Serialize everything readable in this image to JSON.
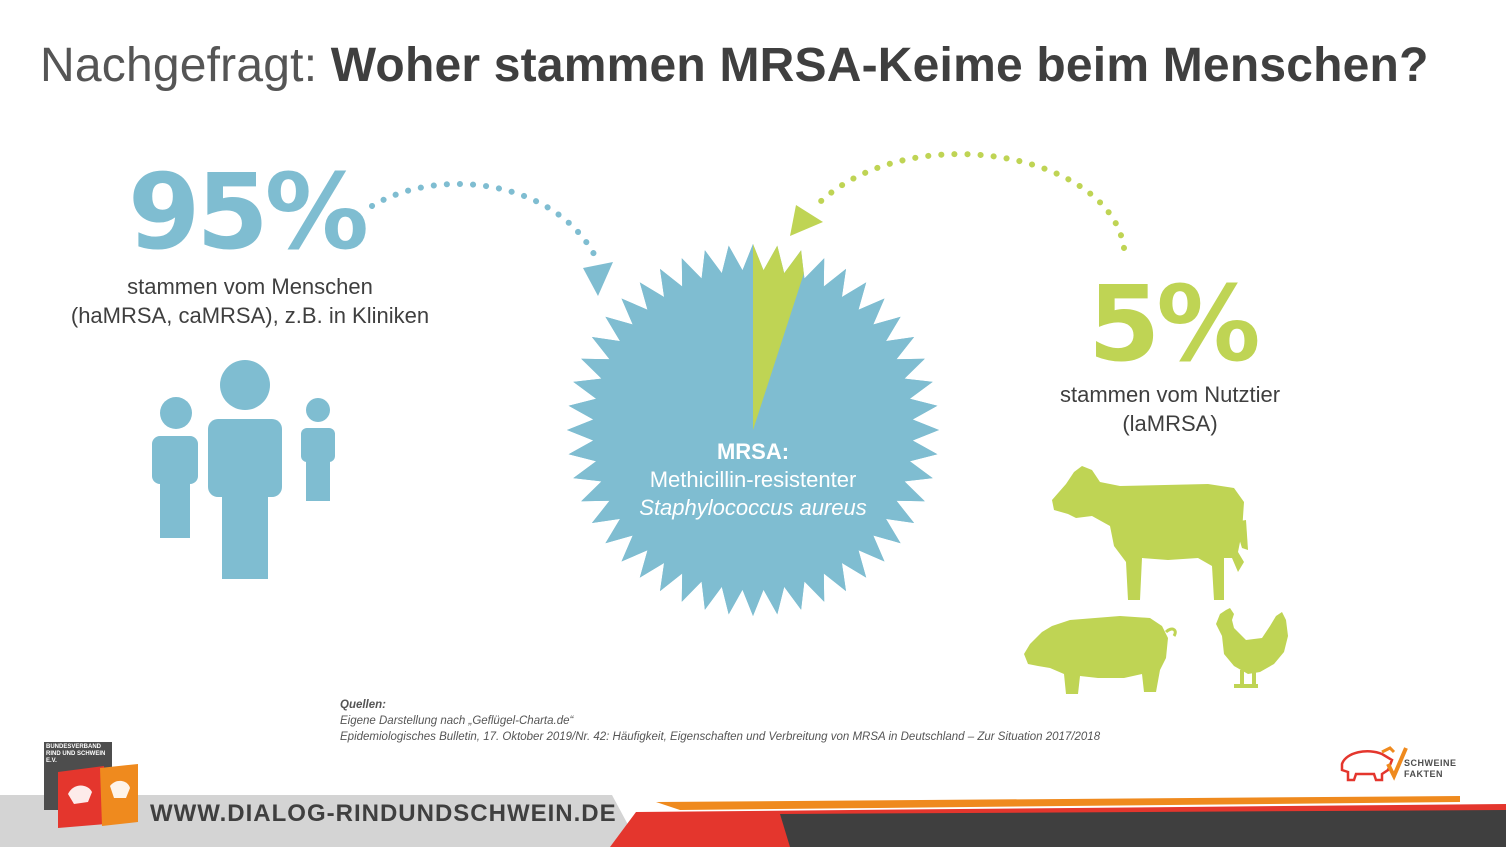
{
  "title": {
    "prefix": "Nachgefragt:",
    "main": "Woher stammen MRSA-Keime beim Menschen?"
  },
  "left": {
    "percentage": "95%",
    "line1": "stammen vom Menschen",
    "line2": "(haMRSA, caMRSA), z.B. in Kliniken",
    "icon": "people-icon"
  },
  "right": {
    "percentage": "5%",
    "line1": "stammen vom Nutztier",
    "line2": "(laMRSA)",
    "icons": [
      "cow-icon",
      "pig-icon",
      "chicken-icon"
    ]
  },
  "center": {
    "label": "MRSA:",
    "line1": "Methicillin-resistenter",
    "line2": "Staphylococcus aureus"
  },
  "chart_data": {
    "type": "pie",
    "categories": [
      "Menschen",
      "Nutztier"
    ],
    "values": [
      95,
      5
    ]
  },
  "sources": {
    "heading": "Quellen:",
    "items": [
      "Eigene Darstellung nach „Geflügel-Charta.de“",
      "Epidemiologisches Bulletin, 17. Oktober 2019/Nr. 42: Häufigkeit, Eigenschaften und Verbreitung von MRSA in Deutschland – Zur Situation 2017/2018"
    ]
  },
  "footer": {
    "website": "WWW.DIALOG-RINDUNDSCHWEIN.DE",
    "logo_left_text": "BUNDESVERBAND RIND UND SCHWEIN E.V.",
    "logo_right_line1": "SCHWEINE",
    "logo_right_line2": "FAKTEN"
  },
  "colors": {
    "blue": "#7fbdd1",
    "green": "#bfd454",
    "dark": "#3f3f3f",
    "orange": "#ef8a1e",
    "red": "#e4362d"
  }
}
